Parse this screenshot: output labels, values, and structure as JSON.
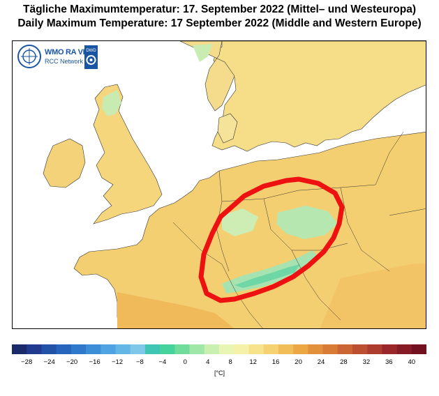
{
  "title_de": "Tägliche Maximumtemperatur:  17. September 2022  (Mittel– und Westeuropa)",
  "title_en": "Daily Maximum Temperature:  17 September 2022  (Middle and Western Europe)",
  "logo": {
    "org": "WMO RA VI",
    "network": "RCC Network",
    "partner": "DWD"
  },
  "colorbar": {
    "unit": "[°C]",
    "ticks": [
      "−28",
      "−24",
      "−20",
      "−16",
      "−12",
      "−8",
      "−4",
      "0",
      "4",
      "8",
      "12",
      "16",
      "20",
      "24",
      "28",
      "32",
      "36",
      "40"
    ],
    "colors": [
      "#1b2a6b",
      "#213a8f",
      "#2251a8",
      "#2565bd",
      "#2f79cc",
      "#3d8ed8",
      "#4ea3e0",
      "#64b6e6",
      "#7fc8ea",
      "#3fc7b3",
      "#45d39c",
      "#6fdc9b",
      "#9fe6a7",
      "#c9f0b0",
      "#e8f5b5",
      "#f6f1a8",
      "#f7e38c",
      "#f5d171",
      "#f1bd58",
      "#eaa744",
      "#e2913a",
      "#d87b35",
      "#cb6533",
      "#bc4f32",
      "#ad3b2e",
      "#9a282a",
      "#861a25",
      "#73101f"
    ]
  },
  "annotation": "hand-drawn red outline around Central Europe (Alps / Southern Germany / Czechia)"
}
